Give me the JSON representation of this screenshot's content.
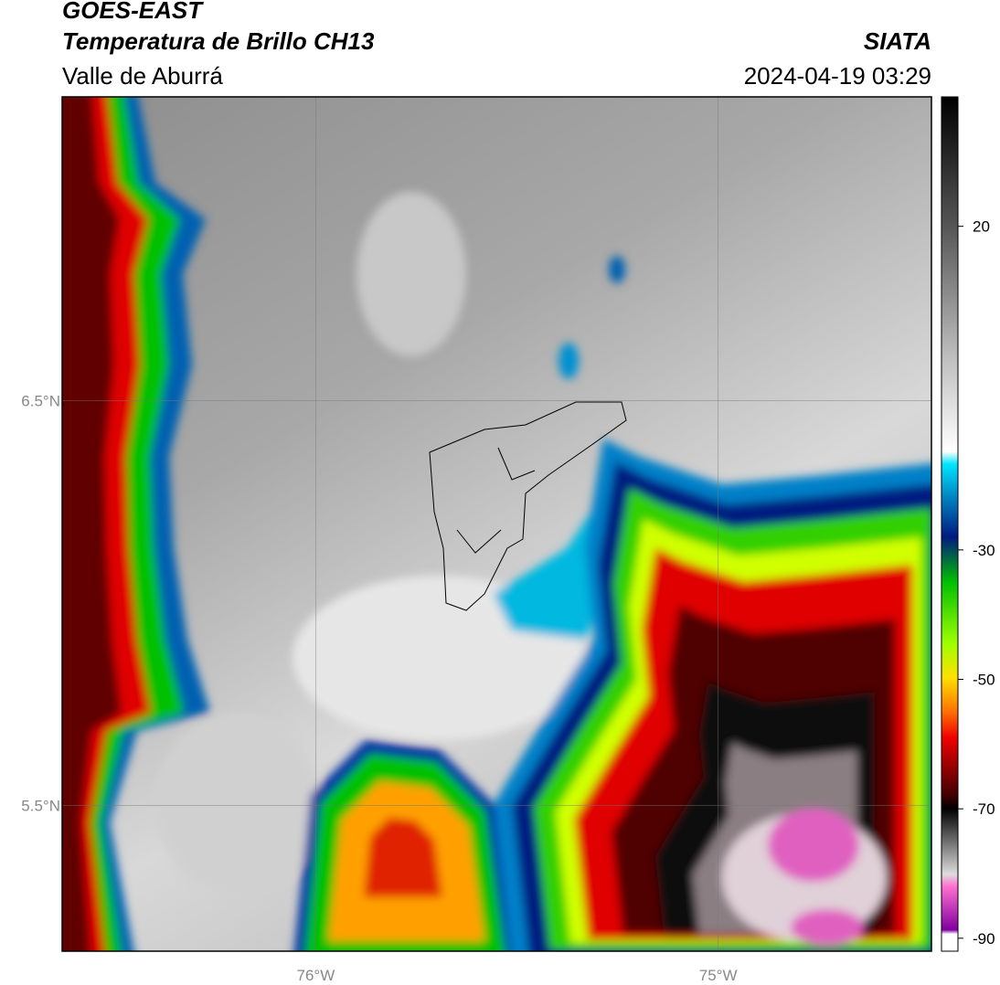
{
  "header": {
    "title": "GOES-EAST",
    "subtitle": "Temperatura de Brillo CH13",
    "region": "Valle de Aburrá",
    "source": "SIATA",
    "datetime": "2024-04-19 03:29"
  },
  "map": {
    "xlim": [
      -76.63,
      -74.47
    ],
    "ylim": [
      5.14,
      7.25
    ],
    "xticks": [
      {
        "value": -76,
        "label": "76°W"
      },
      {
        "value": -75,
        "label": "75°W"
      }
    ],
    "yticks": [
      {
        "value": 6.5,
        "label": "6.5°N"
      },
      {
        "value": 5.5,
        "label": "5.5°N"
      }
    ],
    "grid": true
  },
  "colorbar": {
    "clim": [
      -92,
      40
    ],
    "ticks": [
      20,
      -30,
      -50,
      -70,
      -90
    ]
  }
}
